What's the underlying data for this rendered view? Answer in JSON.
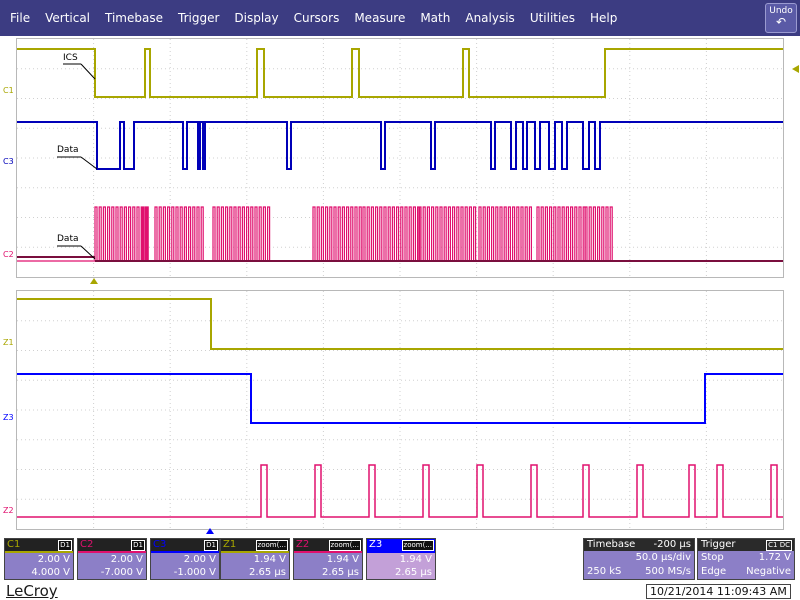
{
  "menu": [
    "File",
    "Vertical",
    "Timebase",
    "Trigger",
    "Display",
    "Cursors",
    "Measure",
    "Math",
    "Analysis",
    "Utilities",
    "Help"
  ],
  "undo": {
    "label": "Undo",
    "icon": "undo-arrow-icon"
  },
  "channel_labels": {
    "c1": "C1",
    "c3": "C3",
    "c2": "C2",
    "z1": "Z1",
    "z3": "Z3",
    "z2": "Z2"
  },
  "annotations": {
    "cs": "ICS",
    "data1": "Data",
    "data2": "Data"
  },
  "colors": {
    "c1": "#a8a600",
    "c2": "#e0106e",
    "c3": "#0000b8",
    "z1": "#a8a600",
    "z2": "#e0106e",
    "z3": "#0000ff",
    "c2_dark": "#7a0e3e",
    "menubar": "#3c3c82"
  },
  "descriptors": [
    {
      "name": "C1",
      "tag": "D1",
      "header_color": "#a8a600",
      "v1": "2.00 V",
      "v2": "4.000 V"
    },
    {
      "name": "C2",
      "tag": "D1",
      "header_color": "#e0106e",
      "v1": "2.00 V",
      "v2": "-7.000 V"
    },
    {
      "name": "C3",
      "tag": "D1",
      "header_color": "#0000ff",
      "v1": "2.00 V",
      "v2": "-1.000 V"
    },
    {
      "name": "Z1",
      "tag": "zoom(...",
      "header_color": "#a8a600",
      "v1": "1.94 V",
      "v2": "2.65 µs"
    },
    {
      "name": "Z2",
      "tag": "zoom(...",
      "header_color": "#e0106e",
      "v1": "1.94 V",
      "v2": "2.65 µs"
    },
    {
      "name": "Z3",
      "tag": "zoom(...",
      "header_color": "#0000ff",
      "v1": "1.94 V",
      "v2": "2.65 µs"
    }
  ],
  "timebase": {
    "label": "Timebase",
    "delay": "-200 µs",
    "tdiv": "50.0 µs/div",
    "samples": "250 kS",
    "rate": "500 MS/s"
  },
  "trigger": {
    "label": "Trigger",
    "tag": "C1 DC",
    "mode": "Stop",
    "level": "1.72 V",
    "type": "Edge",
    "slope": "Negative"
  },
  "logo": "LeCroy",
  "timestamp": "10/21/2014 11:09:43 AM"
}
